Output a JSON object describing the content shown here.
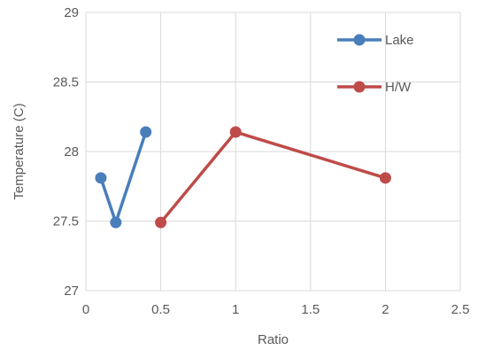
{
  "chart_data": {
    "type": "scatter",
    "xlabel": "Ratio",
    "ylabel": "Temperature (C)",
    "xlim": [
      0,
      2.5
    ],
    "ylim": [
      27,
      29
    ],
    "x_ticks": [
      0,
      0.5,
      1,
      1.5,
      2,
      2.5
    ],
    "x_tick_labels": [
      "0",
      "0.5",
      "1",
      "1.5",
      "2",
      "2.5"
    ],
    "y_ticks": [
      27,
      27.5,
      28,
      28.5,
      29
    ],
    "y_tick_labels": [
      "27",
      "27.5",
      "28",
      "28.5",
      "29"
    ],
    "grid": true,
    "legend_position": "top-right",
    "series": [
      {
        "name": "Lake",
        "color": "#4a7ebb",
        "points": [
          {
            "x": 0.1,
            "y": 27.81
          },
          {
            "x": 0.2,
            "y": 27.49
          },
          {
            "x": 0.4,
            "y": 28.14
          }
        ]
      },
      {
        "name": "H/W",
        "color": "#be4b48",
        "points": [
          {
            "x": 0.5,
            "y": 27.49
          },
          {
            "x": 1.0,
            "y": 28.14
          },
          {
            "x": 2.0,
            "y": 27.81
          }
        ]
      }
    ]
  }
}
